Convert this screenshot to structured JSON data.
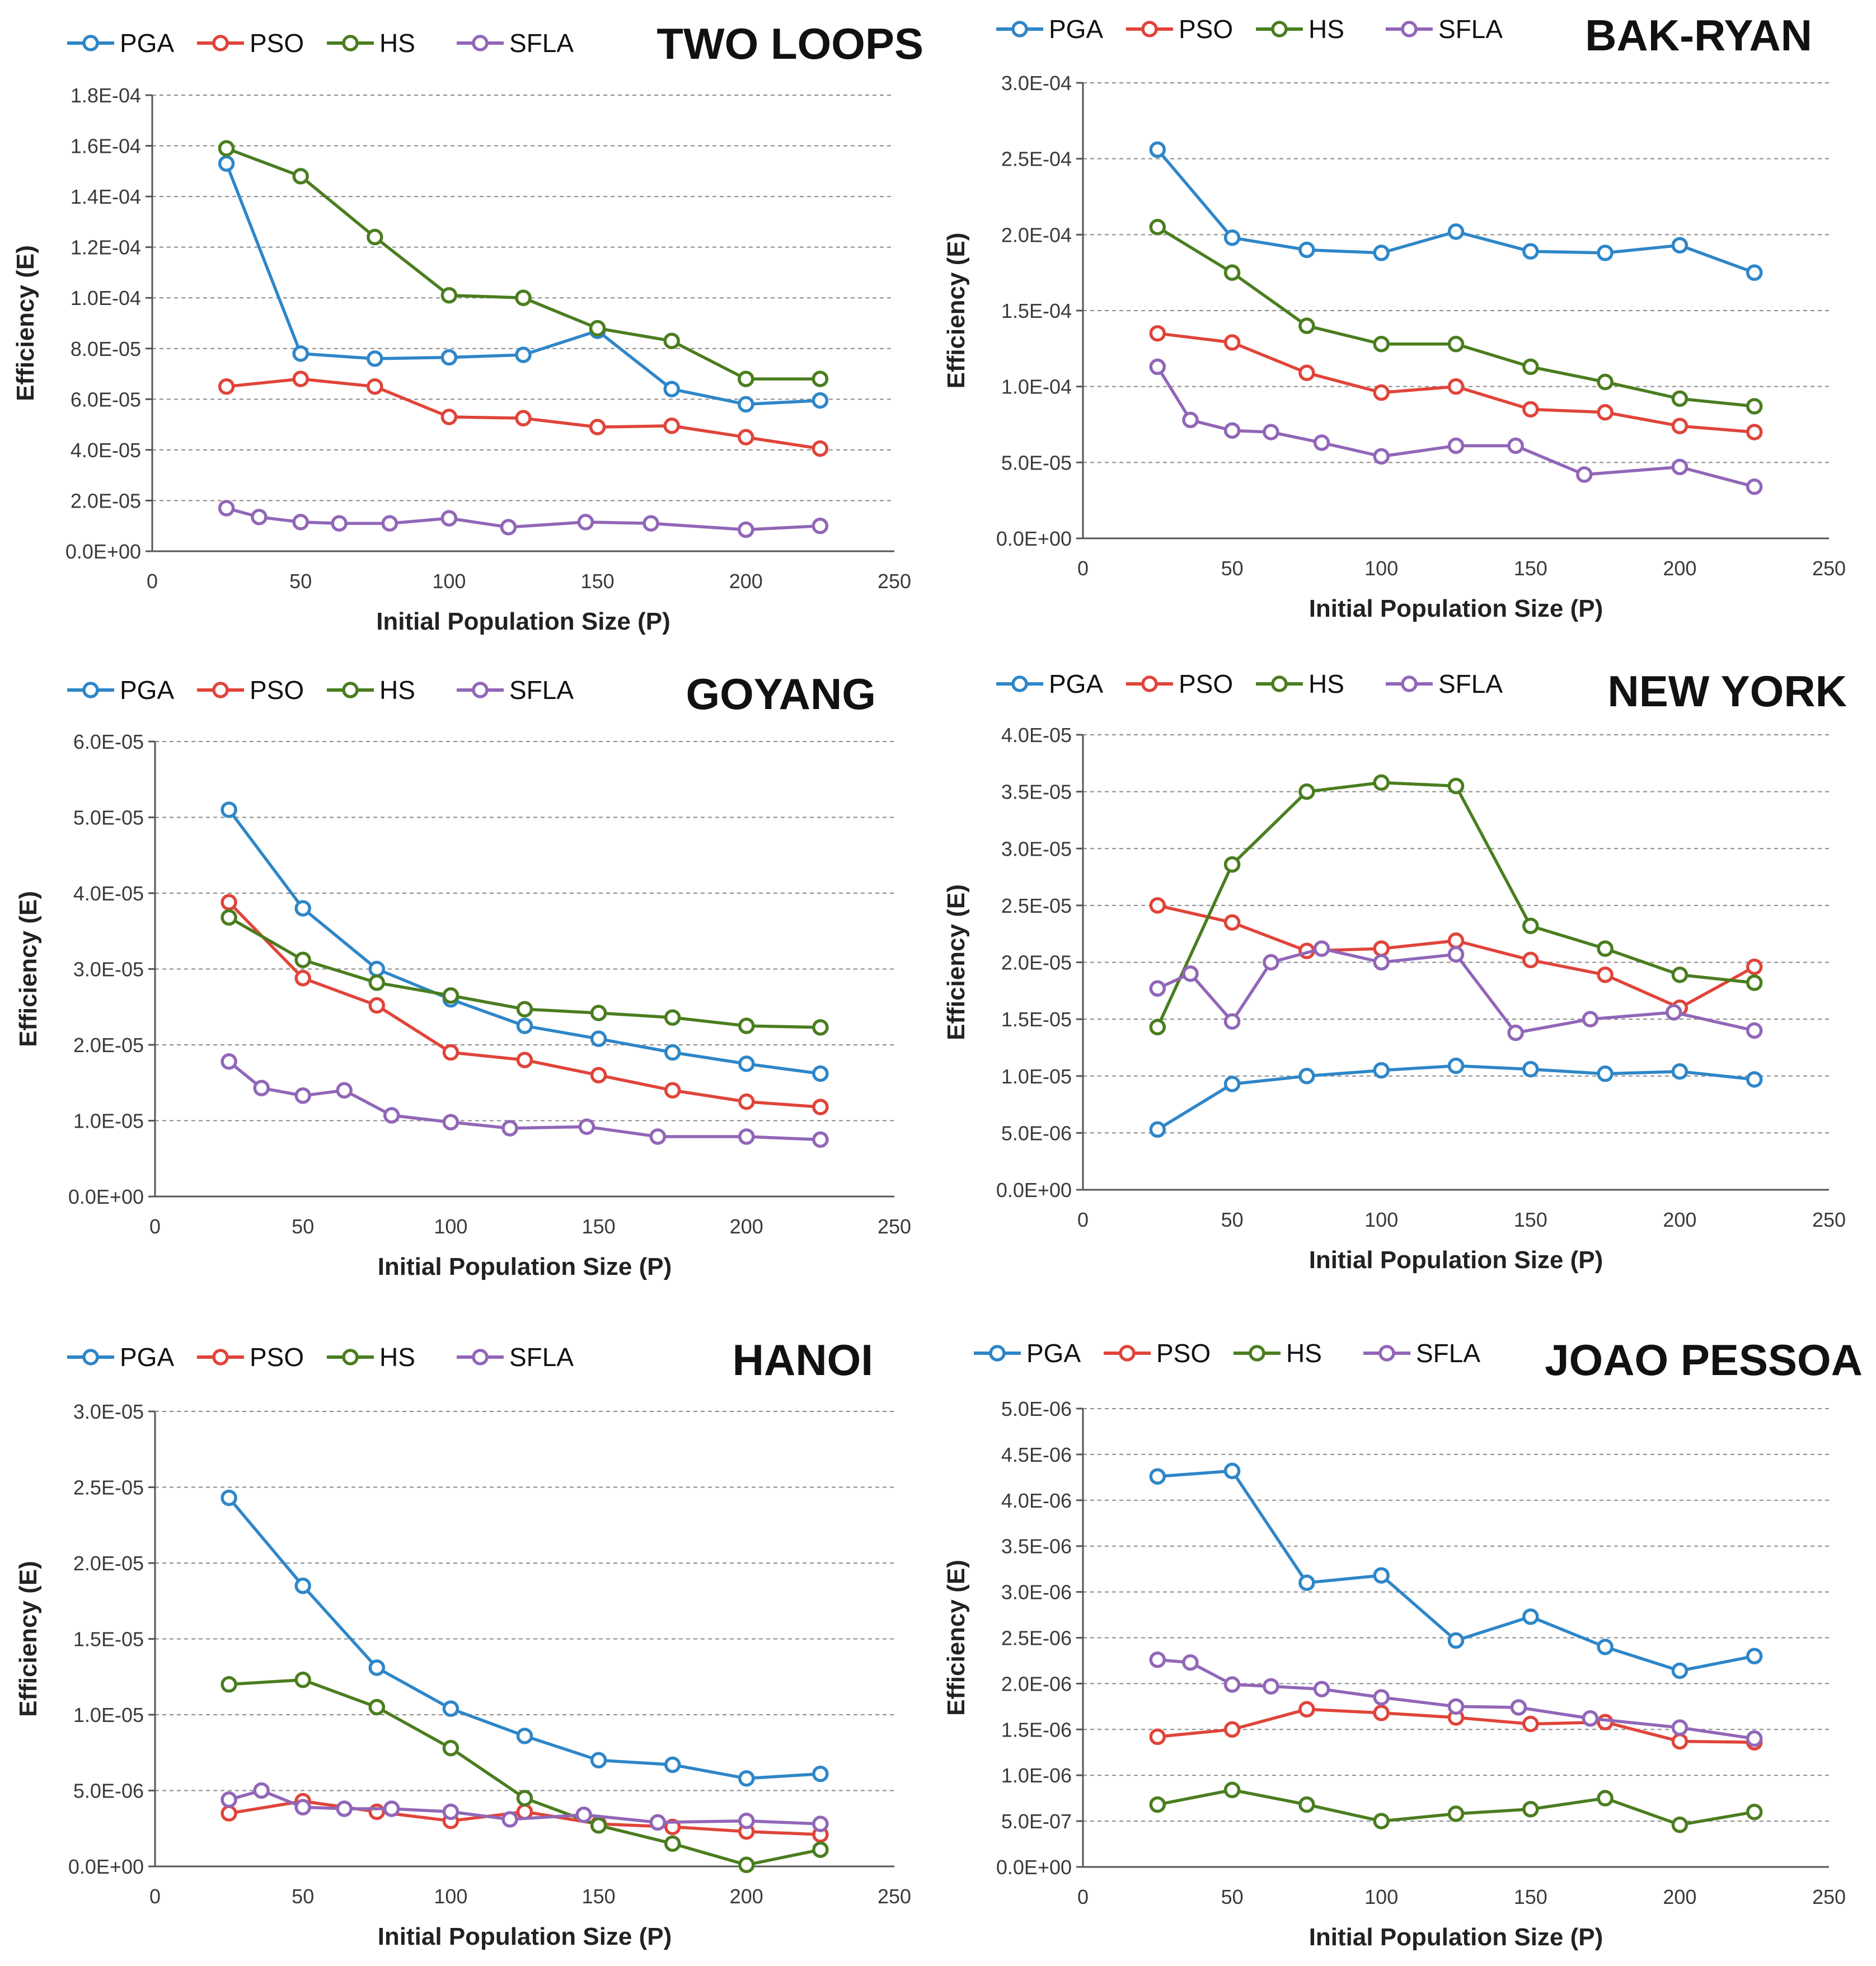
{
  "colors": {
    "PGA": "#2e86c8",
    "PSO": "#e0443a",
    "HS": "#4a7d1f",
    "SFLA": "#9166b8"
  },
  "chart_data": [
    {
      "type": "line",
      "title": "TWO LOOPS",
      "xlabel": "Initial  Population  Size (P)",
      "ylabel": "Efficiency (E)",
      "xlim": [
        0,
        250
      ],
      "xticks": [
        "0",
        "50",
        "100",
        "150",
        "200",
        "250"
      ],
      "ylim": [
        0,
        0.00018
      ],
      "yticks": [
        "0.0E+00",
        "2.0E-05",
        "4.0E-05",
        "6.0E-05",
        "8.0E-05",
        "1.0E-04",
        "1.2E-04",
        "1.4E-04",
        "1.6E-04",
        "1.8E-04"
      ],
      "legend": [
        "PGA",
        "PSO",
        "HS",
        "SFLA"
      ],
      "series": [
        {
          "name": "PGA",
          "x": [
            25,
            50,
            75,
            100,
            125,
            150,
            175,
            200,
            225
          ],
          "values": [
            0.000153,
            7.8e-05,
            7.6e-05,
            7.65e-05,
            7.75e-05,
            8.7e-05,
            6.4e-05,
            5.8e-05,
            5.95e-05
          ]
        },
        {
          "name": "PSO",
          "x": [
            25,
            50,
            75,
            100,
            125,
            150,
            175,
            200,
            225
          ],
          "values": [
            6.5e-05,
            6.8e-05,
            6.5e-05,
            5.3e-05,
            5.25e-05,
            4.9e-05,
            4.95e-05,
            4.5e-05,
            4.05e-05
          ]
        },
        {
          "name": "HS",
          "x": [
            25,
            50,
            75,
            100,
            125,
            150,
            175,
            200,
            225
          ],
          "values": [
            0.000159,
            0.000148,
            0.000124,
            0.000101,
            0.0001,
            8.8e-05,
            8.3e-05,
            6.8e-05,
            6.8e-05
          ]
        },
        {
          "name": "SFLA",
          "x": [
            25,
            36,
            50,
            63,
            80,
            100,
            120,
            146,
            168,
            200,
            225
          ],
          "values": [
            1.7e-05,
            1.35e-05,
            1.15e-05,
            1.1e-05,
            1.1e-05,
            1.3e-05,
            9.5e-06,
            1.15e-05,
            1.1e-05,
            8.5e-06,
            1e-05
          ]
        }
      ]
    },
    {
      "type": "line",
      "title": "BAK-RYAN",
      "xlabel": "Initial  Population  Size (P)",
      "ylabel": "Efficiency (E)",
      "xlim": [
        0,
        250
      ],
      "xticks": [
        "0",
        "50",
        "100",
        "150",
        "200",
        "250"
      ],
      "ylim": [
        0,
        0.0003
      ],
      "yticks": [
        "0.0E+00",
        "5.0E-05",
        "1.0E-04",
        "1.5E-04",
        "2.0E-04",
        "2.5E-04",
        "3.0E-04"
      ],
      "legend": [
        "PGA",
        "PSO",
        "HS",
        "SFLA"
      ],
      "series": [
        {
          "name": "PGA",
          "x": [
            25,
            50,
            75,
            100,
            125,
            150,
            175,
            200,
            225
          ],
          "values": [
            0.000256,
            0.000198,
            0.00019,
            0.000188,
            0.000202,
            0.000189,
            0.000188,
            0.000193,
            0.000175
          ]
        },
        {
          "name": "PSO",
          "x": [
            25,
            50,
            75,
            100,
            125,
            150,
            175,
            200,
            225
          ],
          "values": [
            0.000135,
            0.000129,
            0.000109,
            9.6e-05,
            0.0001,
            8.5e-05,
            8.3e-05,
            7.4e-05,
            7e-05
          ]
        },
        {
          "name": "HS",
          "x": [
            25,
            50,
            75,
            100,
            125,
            150,
            175,
            200,
            225
          ],
          "values": [
            0.000205,
            0.000175,
            0.00014,
            0.000128,
            0.000128,
            0.000113,
            0.000103,
            9.2e-05,
            8.7e-05
          ]
        },
        {
          "name": "SFLA",
          "x": [
            25,
            36,
            50,
            63,
            80,
            100,
            125,
            145,
            168,
            200,
            225
          ],
          "values": [
            0.000113,
            7.8e-05,
            7.1e-05,
            7e-05,
            6.3e-05,
            5.4e-05,
            6.1e-05,
            6.1e-05,
            4.2e-05,
            4.7e-05,
            3.4e-05
          ]
        }
      ]
    },
    {
      "type": "line",
      "title": "GOYANG",
      "xlabel": "Initial  Population  Size (P)",
      "ylabel": "Efficiency (E)",
      "xlim": [
        0,
        250
      ],
      "xticks": [
        "0",
        "50",
        "100",
        "150",
        "200",
        "250"
      ],
      "ylim": [
        0,
        6e-05
      ],
      "yticks": [
        "0.0E+00",
        "1.0E-05",
        "2.0E-05",
        "3.0E-05",
        "4.0E-05",
        "5.0E-05",
        "6.0E-05"
      ],
      "legend": [
        "PGA",
        "PSO",
        "HS",
        "SFLA"
      ],
      "series": [
        {
          "name": "PGA",
          "x": [
            25,
            50,
            75,
            100,
            125,
            150,
            175,
            200,
            225
          ],
          "values": [
            5.1e-05,
            3.8e-05,
            3e-05,
            2.6e-05,
            2.25e-05,
            2.08e-05,
            1.9e-05,
            1.75e-05,
            1.62e-05
          ]
        },
        {
          "name": "PSO",
          "x": [
            25,
            50,
            75,
            100,
            125,
            150,
            175,
            200,
            225
          ],
          "values": [
            3.88e-05,
            2.88e-05,
            2.52e-05,
            1.9e-05,
            1.8e-05,
            1.6e-05,
            1.4e-05,
            1.25e-05,
            1.18e-05
          ]
        },
        {
          "name": "HS",
          "x": [
            25,
            50,
            75,
            100,
            125,
            150,
            175,
            200,
            225
          ],
          "values": [
            3.68e-05,
            3.12e-05,
            2.82e-05,
            2.65e-05,
            2.47e-05,
            2.42e-05,
            2.36e-05,
            2.25e-05,
            2.23e-05
          ]
        },
        {
          "name": "SFLA",
          "x": [
            25,
            36,
            50,
            64,
            80,
            100,
            120,
            146,
            170,
            200,
            225
          ],
          "values": [
            1.78e-05,
            1.43e-05,
            1.33e-05,
            1.4e-05,
            1.07e-05,
            9.8e-06,
            9e-06,
            9.2e-06,
            7.9e-06,
            7.9e-06,
            7.5e-06
          ]
        }
      ]
    },
    {
      "type": "line",
      "title": "NEW YORK",
      "xlabel": "Initial  Population  Size (P)",
      "ylabel": "Efficiency (E)",
      "xlim": [
        0,
        250
      ],
      "xticks": [
        "0",
        "50",
        "100",
        "150",
        "200",
        "250"
      ],
      "ylim": [
        0,
        4e-05
      ],
      "yticks": [
        "0.0E+00",
        "5.0E-06",
        "1.0E-05",
        "1.5E-05",
        "2.0E-05",
        "2.5E-05",
        "3.0E-05",
        "3.5E-05",
        "4.0E-05"
      ],
      "legend": [
        "PGA",
        "PSO",
        "HS",
        "SFLA"
      ],
      "series": [
        {
          "name": "PGA",
          "x": [
            25,
            50,
            75,
            100,
            125,
            150,
            175,
            200,
            225
          ],
          "values": [
            5.3e-06,
            9.3e-06,
            1e-05,
            1.05e-05,
            1.09e-05,
            1.06e-05,
            1.02e-05,
            1.04e-05,
            9.7e-06
          ]
        },
        {
          "name": "PSO",
          "x": [
            25,
            50,
            75,
            100,
            125,
            150,
            175,
            200,
            225
          ],
          "values": [
            2.5e-05,
            2.35e-05,
            2.1e-05,
            2.12e-05,
            2.19e-05,
            2.02e-05,
            1.89e-05,
            1.6e-05,
            1.96e-05
          ]
        },
        {
          "name": "HS",
          "x": [
            25,
            50,
            75,
            100,
            125,
            150,
            175,
            200,
            225
          ],
          "values": [
            1.43e-05,
            2.86e-05,
            3.5e-05,
            3.58e-05,
            3.55e-05,
            2.32e-05,
            2.12e-05,
            1.89e-05,
            1.82e-05
          ]
        },
        {
          "name": "SFLA",
          "x": [
            25,
            36,
            50,
            63,
            80,
            100,
            125,
            145,
            170,
            198,
            225
          ],
          "values": [
            1.77e-05,
            1.9e-05,
            1.48e-05,
            2e-05,
            2.12e-05,
            2e-05,
            2.07e-05,
            1.38e-05,
            1.5e-05,
            1.56e-05,
            1.4e-05
          ]
        }
      ]
    },
    {
      "type": "line",
      "title": "HANOI",
      "xlabel": "Initial  Population  Size (P)",
      "ylabel": "Efficiency  (E)",
      "xlim": [
        0,
        250
      ],
      "xticks": [
        "0",
        "50",
        "100",
        "150",
        "200",
        "250"
      ],
      "ylim": [
        0,
        3e-05
      ],
      "yticks": [
        "0.0E+00",
        "5.0E-06",
        "1.0E-05",
        "1.5E-05",
        "2.0E-05",
        "2.5E-05",
        "3.0E-05"
      ],
      "legend": [
        "PGA",
        "PSO",
        "HS",
        "SFLA"
      ],
      "series": [
        {
          "name": "PGA",
          "x": [
            25,
            50,
            75,
            100,
            125,
            150,
            175,
            200,
            225
          ],
          "values": [
            2.43e-05,
            1.85e-05,
            1.31e-05,
            1.04e-05,
            8.6e-06,
            7e-06,
            6.7e-06,
            5.8e-06,
            6.1e-06
          ]
        },
        {
          "name": "PSO",
          "x": [
            25,
            50,
            75,
            100,
            125,
            150,
            175,
            200,
            225
          ],
          "values": [
            3.5e-06,
            4.3e-06,
            3.6e-06,
            3e-06,
            3.6e-06,
            2.8e-06,
            2.6e-06,
            2.3e-06,
            2.1e-06
          ]
        },
        {
          "name": "HS",
          "x": [
            25,
            50,
            75,
            100,
            125,
            150,
            175,
            200,
            225
          ],
          "values": [
            1.2e-05,
            1.23e-05,
            1.05e-05,
            7.8e-06,
            4.5e-06,
            2.7e-06,
            1.5e-06,
            1e-07,
            1.1e-06
          ]
        },
        {
          "name": "SFLA",
          "x": [
            25,
            36,
            50,
            64,
            80,
            100,
            120,
            145,
            170,
            200,
            225
          ],
          "values": [
            4.4e-06,
            5e-06,
            3.9e-06,
            3.8e-06,
            3.8e-06,
            3.6e-06,
            3.1e-06,
            3.4e-06,
            2.9e-06,
            3e-06,
            2.8e-06
          ]
        }
      ]
    },
    {
      "type": "line",
      "title": "JOAO PESSOA",
      "xlabel": "Initial  Population  Size (P)",
      "ylabel": "Efficiency (E)",
      "xlim": [
        0,
        250
      ],
      "xticks": [
        "0",
        "50",
        "100",
        "150",
        "200",
        "250"
      ],
      "ylim": [
        0,
        5e-06
      ],
      "yticks": [
        "0.0E+00",
        "5.0E-07",
        "1.0E-06",
        "1.5E-06",
        "2.0E-06",
        "2.5E-06",
        "3.0E-06",
        "3.5E-06",
        "4.0E-06",
        "4.5E-06",
        "5.0E-06"
      ],
      "legend": [
        "PGA",
        "PSO",
        "HS",
        "SFLA"
      ],
      "series": [
        {
          "name": "PGA",
          "x": [
            25,
            50,
            75,
            100,
            125,
            150,
            175,
            200,
            225
          ],
          "values": [
            4.26e-06,
            4.32e-06,
            3.1e-06,
            3.18e-06,
            2.47e-06,
            2.73e-06,
            2.4e-06,
            2.14e-06,
            2.3e-06
          ]
        },
        {
          "name": "PSO",
          "x": [
            25,
            50,
            75,
            100,
            125,
            150,
            175,
            200,
            225
          ],
          "values": [
            1.42e-06,
            1.5e-06,
            1.72e-06,
            1.68e-06,
            1.63e-06,
            1.56e-06,
            1.58e-06,
            1.37e-06,
            1.36e-06
          ]
        },
        {
          "name": "HS",
          "x": [
            25,
            50,
            75,
            100,
            125,
            150,
            175,
            200,
            225
          ],
          "values": [
            6.8e-07,
            8.4e-07,
            6.8e-07,
            5e-07,
            5.8e-07,
            6.3e-07,
            7.5e-07,
            4.6e-07,
            6e-07
          ]
        },
        {
          "name": "SFLA",
          "x": [
            25,
            36,
            50,
            63,
            80,
            100,
            125,
            146,
            170,
            200,
            225
          ],
          "values": [
            2.26e-06,
            2.23e-06,
            1.99e-06,
            1.97e-06,
            1.94e-06,
            1.85e-06,
            1.75e-06,
            1.74e-06,
            1.62e-06,
            1.52e-06,
            1.4e-06
          ]
        }
      ]
    }
  ]
}
